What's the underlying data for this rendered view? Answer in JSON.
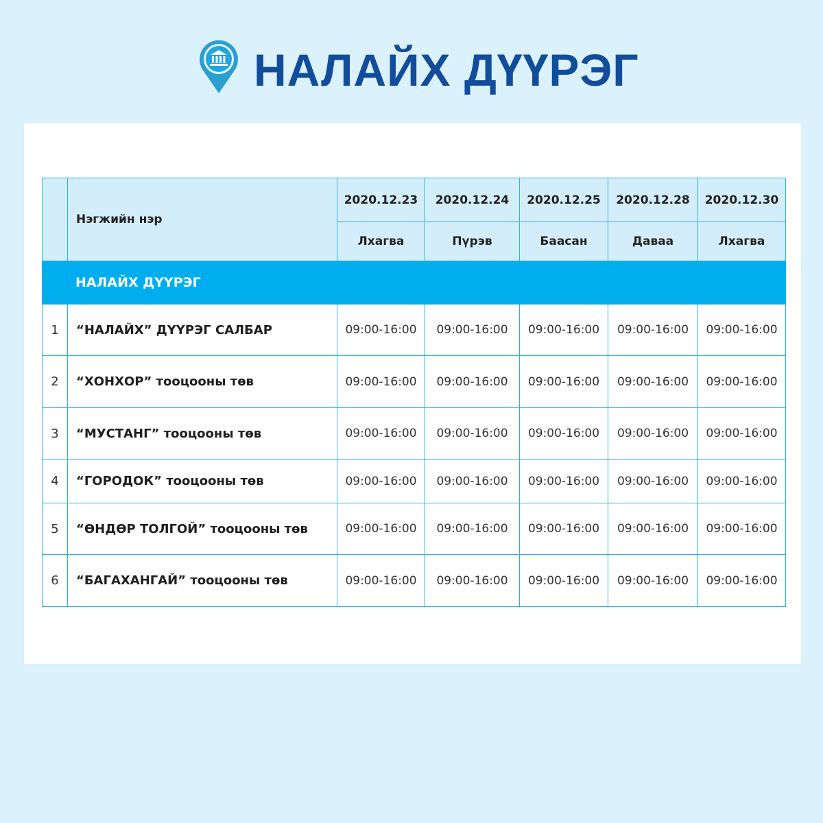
{
  "header": {
    "title": "НАЛАЙХ ДҮҮРЭГ",
    "icon": "bank-location-pin-icon"
  },
  "colors": {
    "title": "#114d9a",
    "band": "#00aeef",
    "header_bg": "#d3edfa",
    "border": "#2ab3e6",
    "page_bg": "#dbf1fb"
  },
  "table": {
    "name_header": "Нэгжийн нэр",
    "dates": [
      "2020.12.23",
      "2020.12.24",
      "2020.12.25",
      "2020.12.28",
      "2020.12.30"
    ],
    "weekdays": [
      "Лхагва",
      "Пүрэв",
      "Баасан",
      "Даваа",
      "Лхагва"
    ],
    "section": "НАЛАЙХ ДҮҮРЭГ",
    "rows": [
      {
        "num": "1",
        "name": "“НАЛАЙХ” ДҮҮРЭГ САЛБАР",
        "times": [
          "09:00-16:00",
          "09:00-16:00",
          "09:00-16:00",
          "09:00-16:00",
          "09:00-16:00"
        ]
      },
      {
        "num": "2",
        "name": "“ХОНХОР” тооцооны төв",
        "times": [
          "09:00-16:00",
          "09:00-16:00",
          "09:00-16:00",
          "09:00-16:00",
          "09:00-16:00"
        ]
      },
      {
        "num": "3",
        "name": "“МУСТАНГ” тооцооны төв",
        "times": [
          "09:00-16:00",
          "09:00-16:00",
          "09:00-16:00",
          "09:00-16:00",
          "09:00-16:00"
        ]
      },
      {
        "num": "4",
        "name": "“ГОРОДОК” тооцооны төв",
        "times": [
          "09:00-16:00",
          "09:00-16:00",
          "09:00-16:00",
          "09:00-16:00",
          "09:00-16:00"
        ]
      },
      {
        "num": "5",
        "name": "“ӨНДӨР ТОЛГОЙ” тооцооны төв",
        "times": [
          "09:00-16:00",
          "09:00-16:00",
          "09:00-16:00",
          "09:00-16:00",
          "09:00-16:00"
        ]
      },
      {
        "num": "6",
        "name": "“БАГАХАНГАЙ” тооцооны төв",
        "times": [
          "09:00-16:00",
          "09:00-16:00",
          "09:00-16:00",
          "09:00-16:00",
          "09:00-16:00"
        ]
      }
    ]
  }
}
